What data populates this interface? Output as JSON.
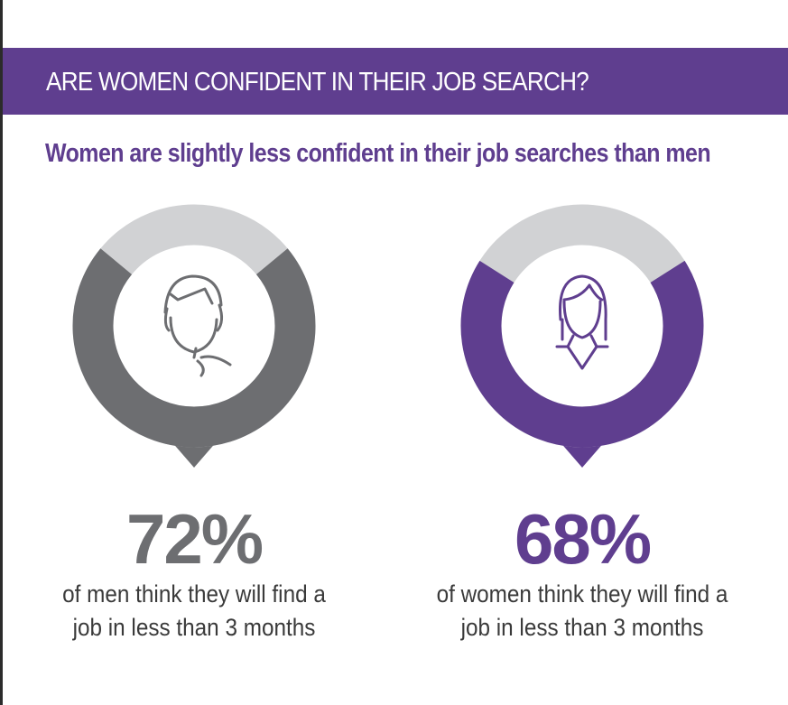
{
  "header": {
    "title": "ARE WOMEN CONFIDENT IN THEIR JOB SEARCH?",
    "subtitle": "Women are slightly less confident in their job searches than men"
  },
  "colors": {
    "brand_purple": "#5f3e8f",
    "men_gray": "#6d6e71",
    "track_gray": "#d1d2d4"
  },
  "stats": [
    {
      "group": "men",
      "fraction": 0.72,
      "value_label": "72%",
      "caption_line1": "of men think they will find a",
      "caption_line2": "job in less than 3 months",
      "icon": "man-head-icon"
    },
    {
      "group": "women",
      "fraction": 0.68,
      "value_label": "68%",
      "caption_line1": "of women think they will find a",
      "caption_line2": "job in less than 3 months",
      "icon": "woman-head-icon"
    }
  ]
}
